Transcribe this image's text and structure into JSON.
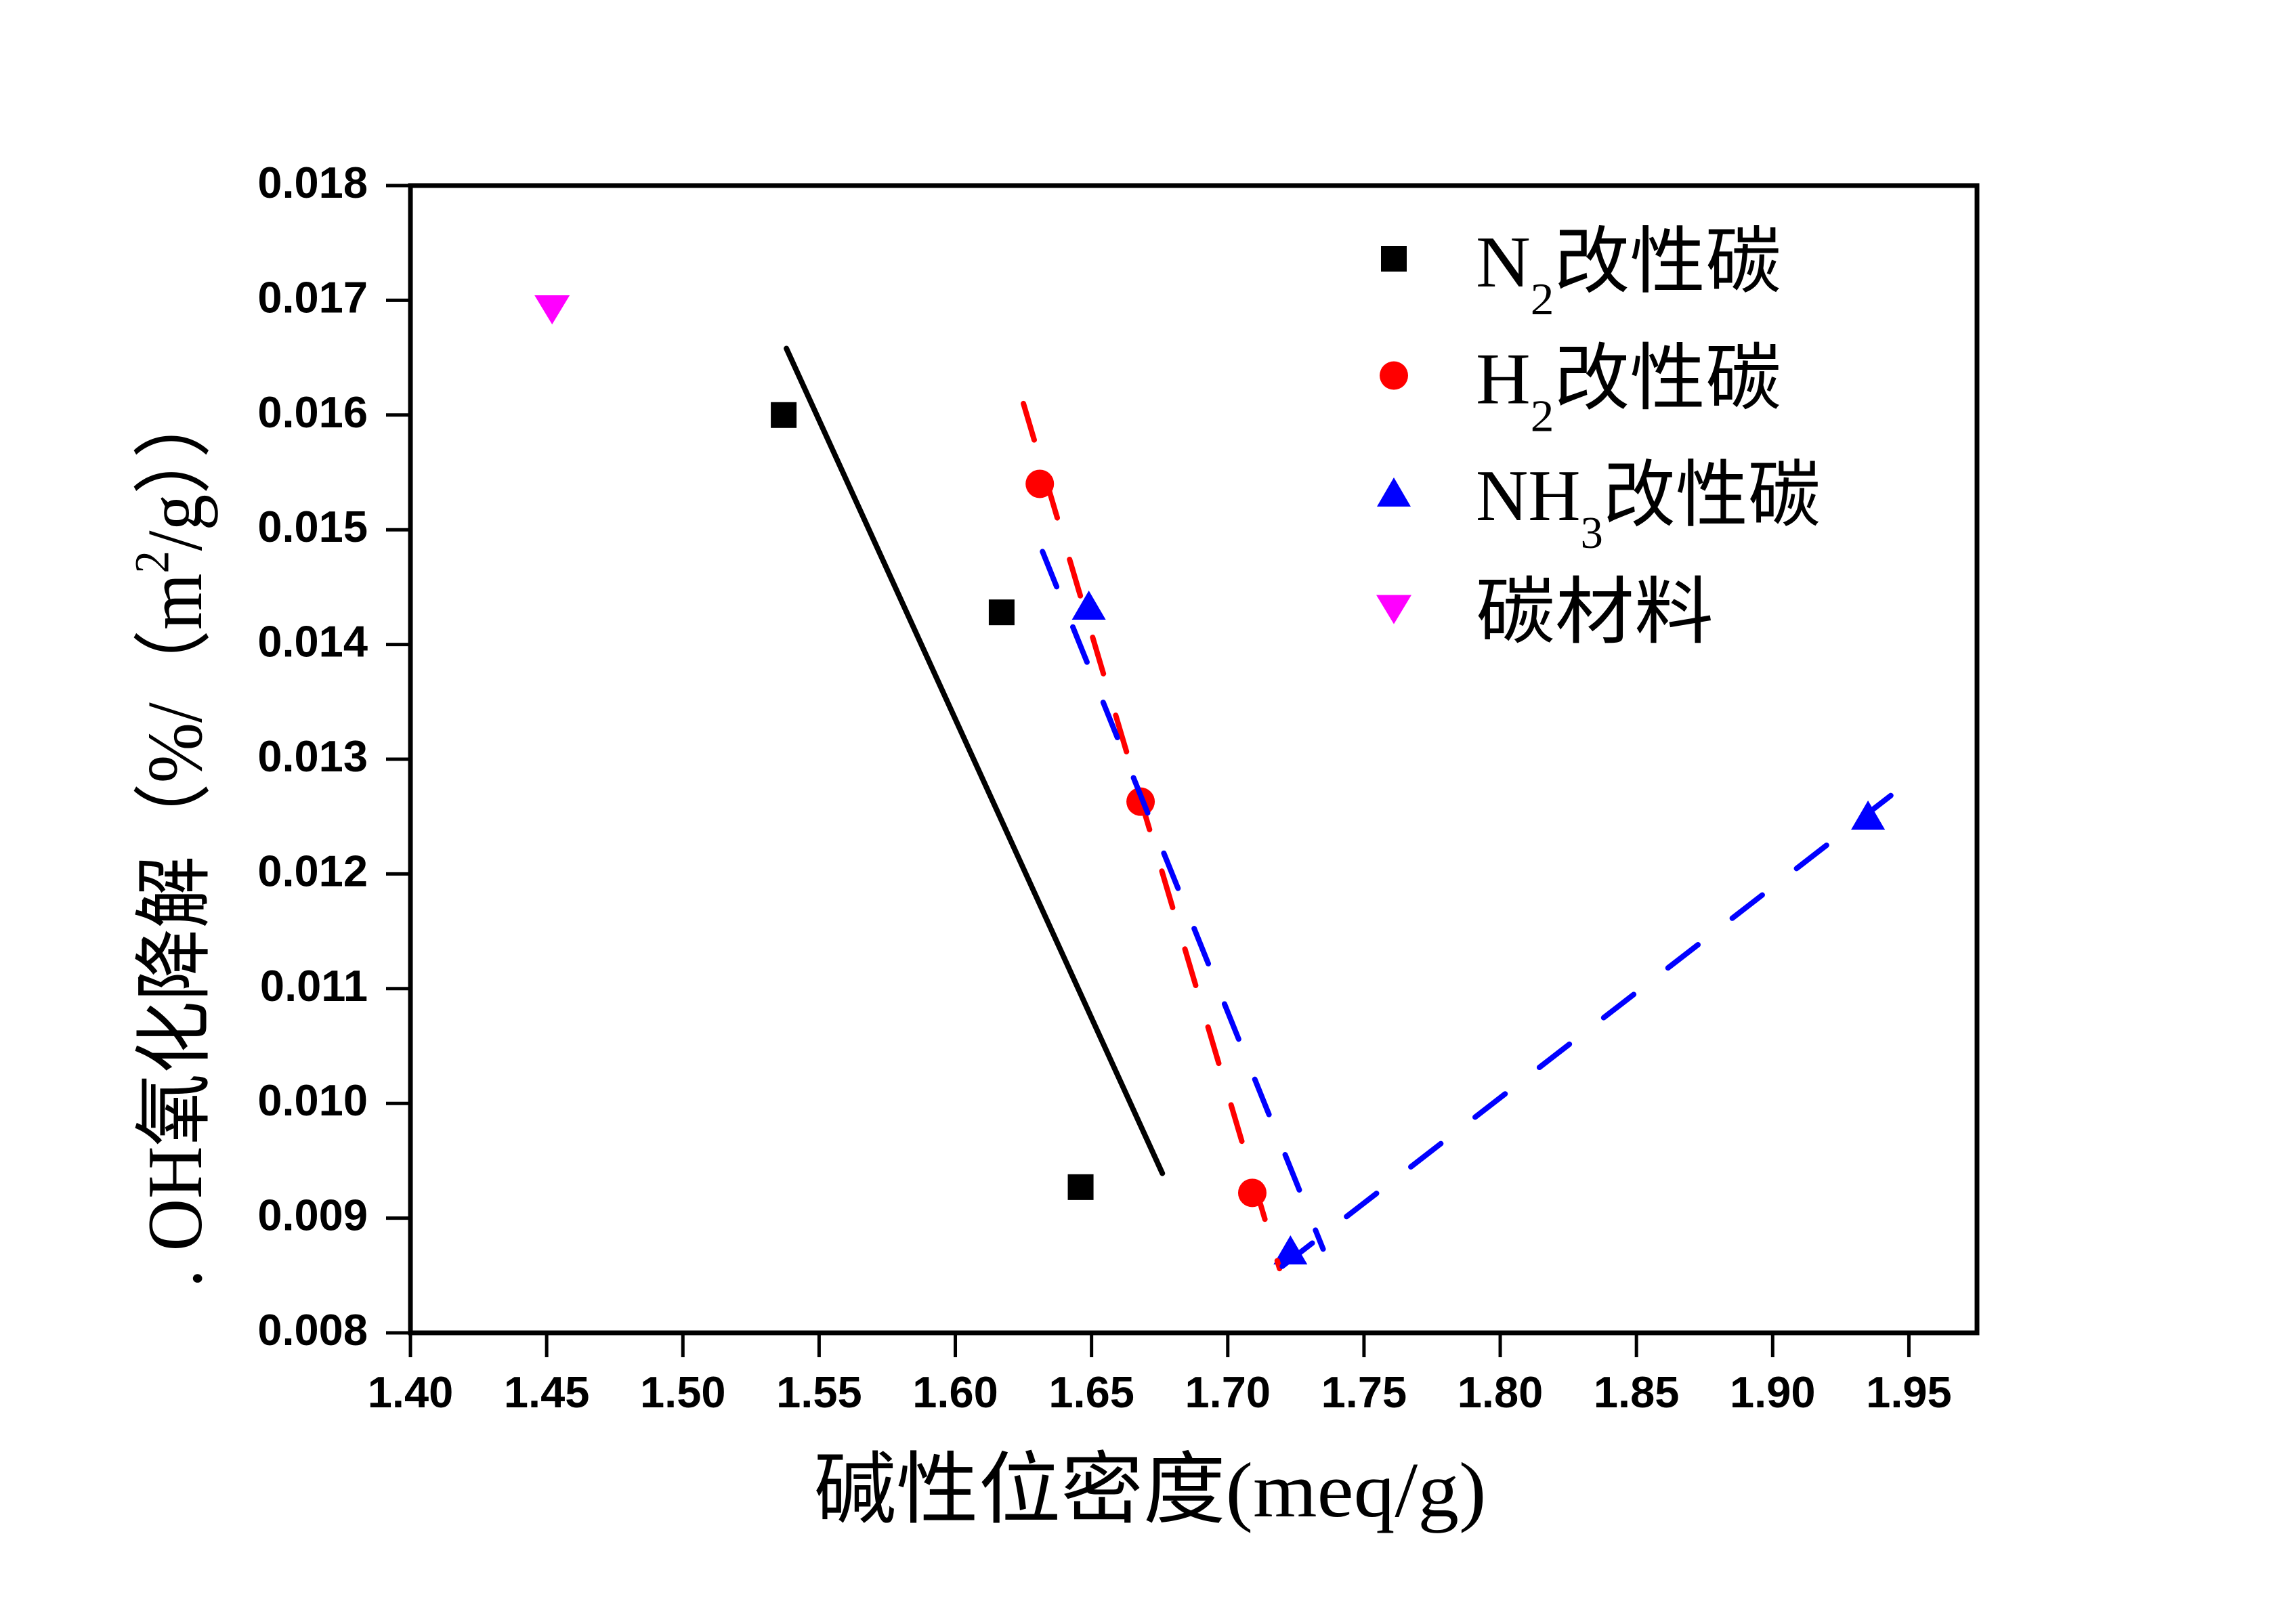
{
  "chart_data": {
    "type": "scatter",
    "title": "",
    "xlabel": "碱性位密度(meq/g)",
    "ylabel": ". OH氧化降解（%/（m²/g））",
    "xlim": [
      1.4,
      1.975
    ],
    "ylim": [
      0.008,
      0.018
    ],
    "grid": false,
    "xticks": [
      1.4,
      1.45,
      1.5,
      1.55,
      1.6,
      1.65,
      1.7,
      1.75,
      1.8,
      1.85,
      1.9,
      1.95
    ],
    "xtick_labels": [
      "1.40",
      "1.45",
      "1.50",
      "1.55",
      "1.60",
      "1.65",
      "1.70",
      "1.75",
      "1.80",
      "1.85",
      "1.90",
      "1.95"
    ],
    "yticks": [
      0.008,
      0.009,
      0.01,
      0.011,
      0.012,
      0.013,
      0.014,
      0.015,
      0.016,
      0.017,
      0.018
    ],
    "ytick_labels": [
      "0.008",
      "0.009",
      "0.010",
      "0.011",
      "0.012",
      "0.013",
      "0.014",
      "0.015",
      "0.016",
      "0.017",
      "0.018"
    ],
    "legend": {
      "position": "top-right"
    },
    "series": [
      {
        "name": "N₂改性碳",
        "marker": "square",
        "color": "#000000",
        "x": [
          1.537,
          1.617,
          1.646
        ],
        "y": [
          0.016,
          0.01428,
          0.00927
        ]
      },
      {
        "name": "H₂改性碳",
        "marker": "circle",
        "color": "#ff0000",
        "x": [
          1.631,
          1.668,
          1.709
        ],
        "y": [
          0.0154,
          0.01263,
          0.00922
        ]
      },
      {
        "name": "NH₃改性碳",
        "marker": "triangle-up",
        "color": "#0000ff",
        "x": [
          1.649,
          1.723,
          1.935
        ],
        "y": [
          0.01434,
          0.00872,
          0.01251
        ]
      },
      {
        "name": "碳材料",
        "marker": "triangle-down",
        "color": "#ff00ff",
        "x": [
          1.452
        ],
        "y": [
          0.01692
        ]
      }
    ],
    "trend_lines": [
      {
        "series": "N₂改性碳",
        "color": "#000000",
        "style": "solid",
        "x": [
          1.538,
          1.676
        ],
        "y": [
          0.01658,
          0.00939
        ]
      },
      {
        "series": "H₂改性碳",
        "color": "#ff0000",
        "style": "dashed",
        "x": [
          1.625,
          1.719
        ],
        "y": [
          0.0161,
          0.00856
        ]
      },
      {
        "series": "NH₃改性碳",
        "color": "#0000ff",
        "style": "dashed",
        "x": [
          1.632,
          1.735
        ],
        "y": [
          0.01481,
          0.00873
        ]
      },
      {
        "series": "NH₃改性碳",
        "color": "#0000ff",
        "style": "dashed",
        "x": [
          1.72,
          1.953
        ],
        "y": [
          0.00858,
          0.01286
        ]
      }
    ]
  }
}
